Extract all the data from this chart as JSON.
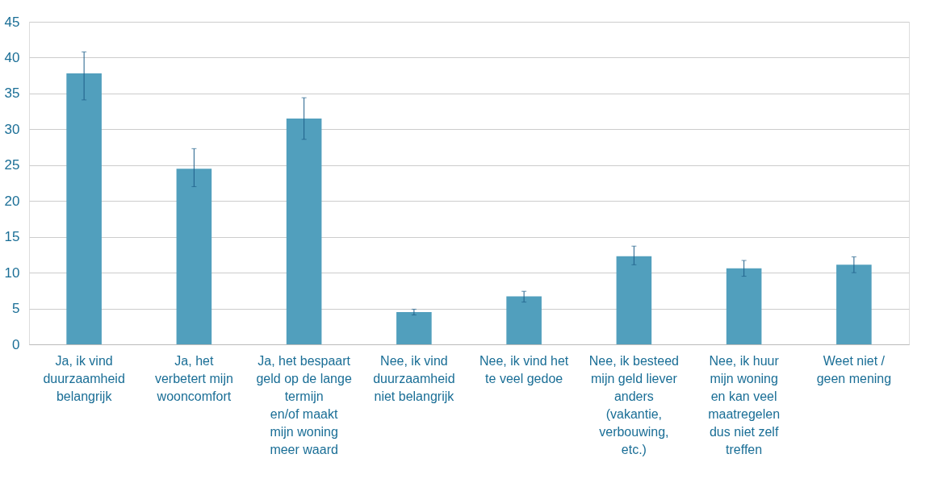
{
  "chart_data": {
    "type": "bar",
    "categories": [
      "Ja, ik vind\nduurzaamheid\nbelangrijk",
      "Ja, het\nverbetert mijn\nwooncomfort",
      "Ja, het bespaart\ngeld op de lange\ntermijn\nen/of maakt\nmijn woning\nmeer waard",
      "Nee, ik vind\nduurzaamheid\nniet belangrijk",
      "Nee, ik vind het\nte veel gedoe",
      "Nee, ik besteed\nmijn geld liever\nanders\n(vakantie,\nverbouwing,\netc.)",
      "Nee, ik huur\nmijn woning\nen kan veel\nmaatregelen\ndus niet zelf\ntreffen",
      "Weet niet /\ngeen mening"
    ],
    "values": [
      37.8,
      24.5,
      31.5,
      4.5,
      6.7,
      12.3,
      10.6,
      11.1
    ],
    "errors": [
      [
        34.1,
        40.8
      ],
      [
        22.0,
        27.3
      ],
      [
        28.6,
        34.4
      ],
      [
        4.1,
        4.9
      ],
      [
        5.9,
        7.4
      ],
      [
        11.1,
        13.7
      ],
      [
        9.5,
        11.7
      ],
      [
        10.0,
        12.2
      ]
    ],
    "color": "#519fbd",
    "ylim": [
      0,
      45
    ],
    "yticks": [
      0,
      5,
      10,
      15,
      20,
      25,
      30,
      35,
      40,
      45
    ],
    "grid": "y"
  }
}
